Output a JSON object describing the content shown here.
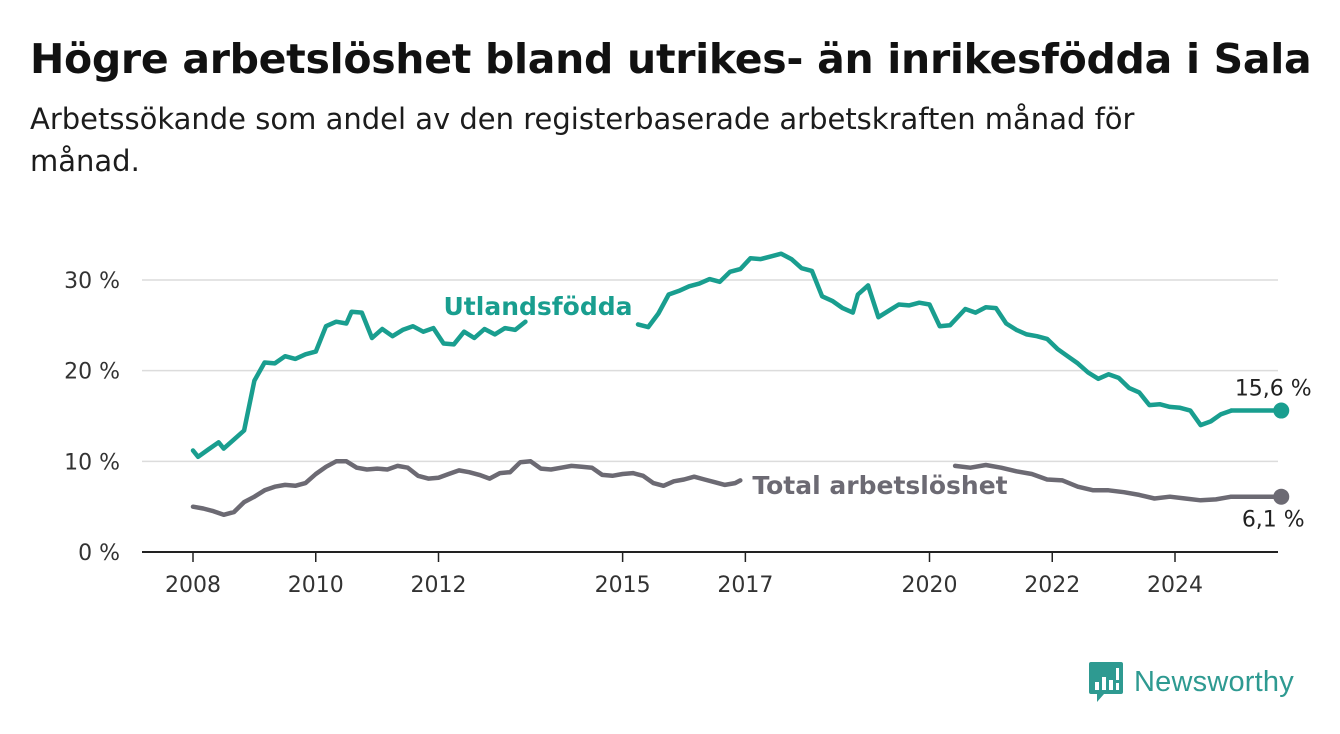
{
  "title": "Högre arbetslöshet bland utrikes- än inrikesfödda i Sala",
  "subtitle": "Arbetssökande som andel av den registerbaserade arbetskraften månad för månad.",
  "brand": {
    "name": "Newsworthy",
    "color": "#2e9a91",
    "icon": "bar-chart-logo-icon"
  },
  "chart_data": {
    "type": "line",
    "title": "Högre arbetslöshet bland utrikes- än inrikesfödda i Sala",
    "subtitle": "Arbetssökande som andel av den registerbaserade arbetskraften månad för månad.",
    "xlabel": "",
    "ylabel": "",
    "x_ticks": [
      2008,
      2010,
      2012,
      2015,
      2017,
      2020,
      2022,
      2024
    ],
    "y_ticks": [
      0,
      10,
      20,
      30
    ],
    "y_tick_labels": [
      "0 %",
      "10 %",
      "20 %",
      "30 %"
    ],
    "ylim": [
      0,
      30
    ],
    "grid": true,
    "series": [
      {
        "name": "Utlandsfödda",
        "color": "#199e8f",
        "end_label": "15,6 %",
        "points": [
          [
            "2008-01",
            11.2
          ],
          [
            "2008-02",
            10.5
          ],
          [
            "2008-04",
            11.3
          ],
          [
            "2008-06",
            12.1
          ],
          [
            "2008-07",
            11.4
          ],
          [
            "2008-09",
            12.4
          ],
          [
            "2008-11",
            13.4
          ],
          [
            "2009-01",
            18.9
          ],
          [
            "2009-03",
            20.9
          ],
          [
            "2009-05",
            20.8
          ],
          [
            "2009-07",
            21.6
          ],
          [
            "2009-09",
            21.3
          ],
          [
            "2009-11",
            21.8
          ],
          [
            "2010-01",
            22.1
          ],
          [
            "2010-03",
            24.9
          ],
          [
            "2010-05",
            25.4
          ],
          [
            "2010-07",
            25.2
          ],
          [
            "2010-08",
            26.5
          ],
          [
            "2010-10",
            26.4
          ],
          [
            "2010-12",
            23.6
          ],
          [
            "2011-02",
            24.6
          ],
          [
            "2011-04",
            23.8
          ],
          [
            "2011-06",
            24.5
          ],
          [
            "2011-08",
            24.9
          ],
          [
            "2011-10",
            24.3
          ],
          [
            "2011-12",
            24.7
          ],
          [
            "2012-02",
            23.0
          ],
          [
            "2012-04",
            22.9
          ],
          [
            "2012-06",
            24.3
          ],
          [
            "2012-08",
            23.6
          ],
          [
            "2012-10",
            24.6
          ],
          [
            "2012-12",
            24.0
          ],
          [
            "2013-02",
            24.7
          ],
          [
            "2013-04",
            24.5
          ],
          [
            "2013-06",
            25.4
          ],
          [
            "2015-04",
            25.1
          ],
          [
            "2015-06",
            24.8
          ],
          [
            "2015-08",
            26.3
          ],
          [
            "2015-10",
            28.4
          ],
          [
            "2015-12",
            28.8
          ],
          [
            "2016-02",
            29.3
          ],
          [
            "2016-04",
            29.6
          ],
          [
            "2016-06",
            30.1
          ],
          [
            "2016-08",
            29.8
          ],
          [
            "2016-10",
            30.9
          ],
          [
            "2016-12",
            31.2
          ],
          [
            "2017-02",
            32.4
          ],
          [
            "2017-04",
            32.3
          ],
          [
            "2017-06",
            32.6
          ],
          [
            "2017-08",
            32.9
          ],
          [
            "2017-10",
            32.3
          ],
          [
            "2017-12",
            31.3
          ],
          [
            "2018-02",
            31.0
          ],
          [
            "2018-04",
            28.2
          ],
          [
            "2018-06",
            27.7
          ],
          [
            "2018-08",
            26.9
          ],
          [
            "2018-10",
            26.4
          ],
          [
            "2018-11",
            28.4
          ],
          [
            "2019-01",
            29.4
          ],
          [
            "2019-03",
            25.9
          ],
          [
            "2019-05",
            26.6
          ],
          [
            "2019-07",
            27.3
          ],
          [
            "2019-09",
            27.2
          ],
          [
            "2019-11",
            27.5
          ],
          [
            "2020-01",
            27.3
          ],
          [
            "2020-03",
            24.9
          ],
          [
            "2020-05",
            25.0
          ],
          [
            "2020-08",
            26.8
          ],
          [
            "2020-10",
            26.4
          ],
          [
            "2020-12",
            27.0
          ],
          [
            "2021-02",
            26.9
          ],
          [
            "2021-04",
            25.2
          ],
          [
            "2021-06",
            24.5
          ],
          [
            "2021-08",
            24.0
          ],
          [
            "2021-10",
            23.8
          ],
          [
            "2021-12",
            23.5
          ],
          [
            "2022-02",
            22.4
          ],
          [
            "2022-04",
            21.6
          ],
          [
            "2022-06",
            20.8
          ],
          [
            "2022-08",
            19.8
          ],
          [
            "2022-10",
            19.1
          ],
          [
            "2022-12",
            19.6
          ],
          [
            "2023-02",
            19.2
          ],
          [
            "2023-04",
            18.1
          ],
          [
            "2023-06",
            17.6
          ],
          [
            "2023-08",
            16.2
          ],
          [
            "2023-10",
            16.3
          ],
          [
            "2023-12",
            16.0
          ],
          [
            "2024-02",
            15.9
          ],
          [
            "2024-04",
            15.6
          ],
          [
            "2024-06",
            14.0
          ],
          [
            "2024-08",
            14.4
          ],
          [
            "2024-10",
            15.2
          ],
          [
            "2024-12",
            15.6
          ]
        ]
      },
      {
        "name": "Total arbetslöshet",
        "color": "#6c6a73",
        "end_label": "6,1 %",
        "points": [
          [
            "2008-01",
            5.0
          ],
          [
            "2008-03",
            4.8
          ],
          [
            "2008-05",
            4.5
          ],
          [
            "2008-07",
            4.1
          ],
          [
            "2008-09",
            4.4
          ],
          [
            "2008-11",
            5.5
          ],
          [
            "2009-01",
            6.1
          ],
          [
            "2009-03",
            6.8
          ],
          [
            "2009-05",
            7.2
          ],
          [
            "2009-07",
            7.4
          ],
          [
            "2009-09",
            7.3
          ],
          [
            "2009-11",
            7.6
          ],
          [
            "2010-01",
            8.6
          ],
          [
            "2010-03",
            9.4
          ],
          [
            "2010-05",
            10.0
          ],
          [
            "2010-07",
            10.0
          ],
          [
            "2010-09",
            9.3
          ],
          [
            "2010-11",
            9.1
          ],
          [
            "2011-01",
            9.2
          ],
          [
            "2011-03",
            9.1
          ],
          [
            "2011-05",
            9.5
          ],
          [
            "2011-07",
            9.3
          ],
          [
            "2011-09",
            8.4
          ],
          [
            "2011-11",
            8.1
          ],
          [
            "2012-01",
            8.2
          ],
          [
            "2012-03",
            8.6
          ],
          [
            "2012-05",
            9.0
          ],
          [
            "2012-07",
            8.8
          ],
          [
            "2012-09",
            8.5
          ],
          [
            "2012-11",
            8.1
          ],
          [
            "2013-01",
            8.7
          ],
          [
            "2013-03",
            8.8
          ],
          [
            "2013-05",
            9.9
          ],
          [
            "2013-07",
            10.0
          ],
          [
            "2013-09",
            9.2
          ],
          [
            "2013-11",
            9.1
          ],
          [
            "2014-01",
            9.3
          ],
          [
            "2014-03",
            9.5
          ],
          [
            "2014-05",
            9.4
          ],
          [
            "2014-07",
            9.3
          ],
          [
            "2014-09",
            8.5
          ],
          [
            "2014-11",
            8.4
          ],
          [
            "2015-01",
            8.6
          ],
          [
            "2015-03",
            8.7
          ],
          [
            "2015-05",
            8.4
          ],
          [
            "2015-07",
            7.6
          ],
          [
            "2015-09",
            7.3
          ],
          [
            "2015-11",
            7.8
          ],
          [
            "2016-01",
            8.0
          ],
          [
            "2016-03",
            8.3
          ],
          [
            "2016-05",
            8.0
          ],
          [
            "2016-07",
            7.7
          ],
          [
            "2016-09",
            7.4
          ],
          [
            "2016-11",
            7.6
          ],
          [
            "2016-12",
            7.9
          ],
          [
            "2020-06",
            9.5
          ],
          [
            "2020-09",
            9.3
          ],
          [
            "2020-12",
            9.6
          ],
          [
            "2021-03",
            9.3
          ],
          [
            "2021-06",
            8.9
          ],
          [
            "2021-09",
            8.6
          ],
          [
            "2021-12",
            8.0
          ],
          [
            "2022-03",
            7.9
          ],
          [
            "2022-06",
            7.2
          ],
          [
            "2022-09",
            6.8
          ],
          [
            "2022-12",
            6.8
          ],
          [
            "2023-03",
            6.6
          ],
          [
            "2023-06",
            6.3
          ],
          [
            "2023-09",
            5.9
          ],
          [
            "2023-12",
            6.1
          ],
          [
            "2024-03",
            5.9
          ],
          [
            "2024-06",
            5.7
          ],
          [
            "2024-09",
            5.8
          ],
          [
            "2024-12",
            6.1
          ]
        ]
      }
    ],
    "legend": "inline labels on lines"
  }
}
